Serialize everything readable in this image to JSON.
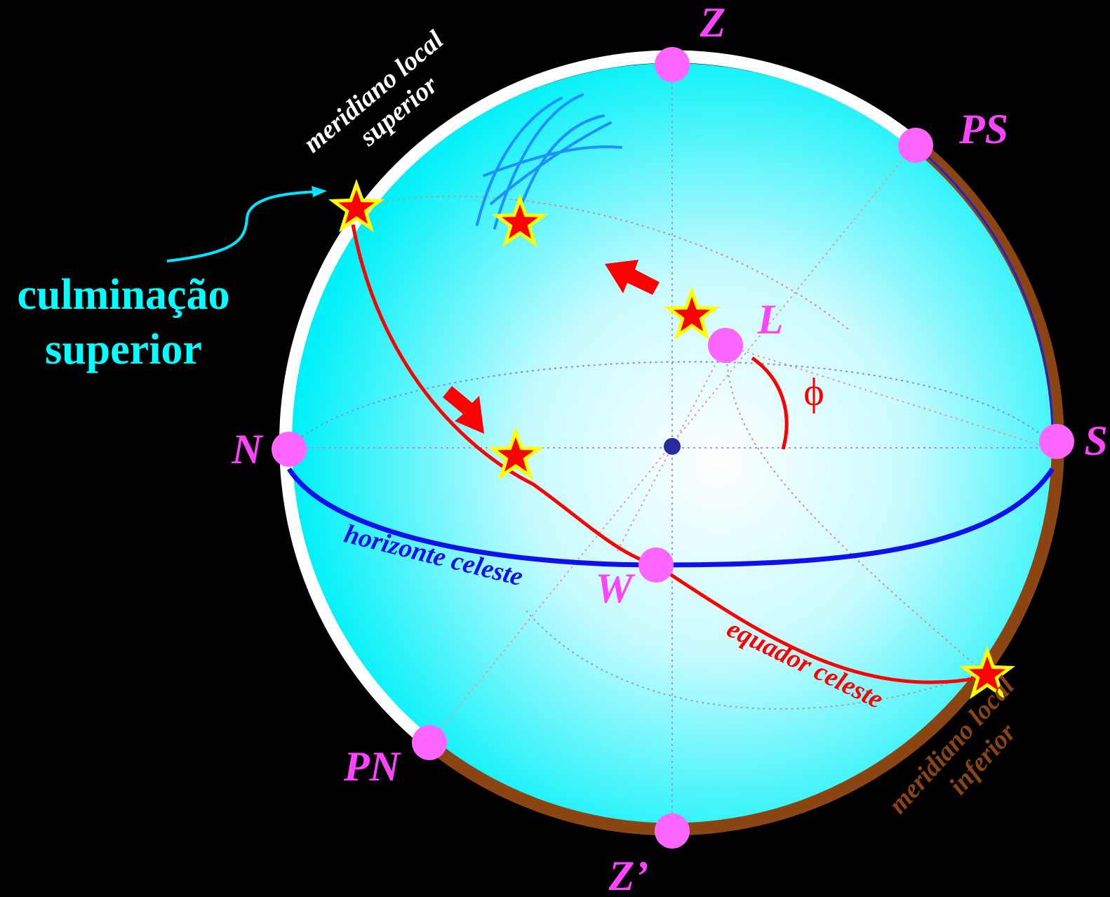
{
  "labels": {
    "zenith": "Z",
    "nadir": "Z’",
    "south_pole": "PS",
    "north_pole": "PN",
    "north": "N",
    "south": "S",
    "west": "W",
    "local_point": "L",
    "latitude_symbol": "ϕ",
    "culmination_line1": "culminação",
    "culmination_line2": "superior",
    "upper_meridian_line1": "meridiano local",
    "upper_meridian_line2": "superior",
    "lower_meridian_line1": "meridiano local",
    "lower_meridian_line2": "inferior",
    "horizon": "horizonte celeste",
    "equator": "equador celeste"
  },
  "colors": {
    "background": "#000000",
    "sphere_center": "#ffffff",
    "sphere_edge": "#00ffff",
    "point_marker": "#ff66ff",
    "point_label": "#ff44ff",
    "equator": "#ff0000",
    "horizon": "#1010ee",
    "upper_meridian": "#ffffff",
    "lower_meridian": "#8b4513",
    "culmination_text": "#00ffff",
    "star_fill": "#ff0000",
    "star_outline": "#ffff00",
    "center_dot": "#2a2aa0",
    "hand_stroke": "#1e90ff"
  }
}
